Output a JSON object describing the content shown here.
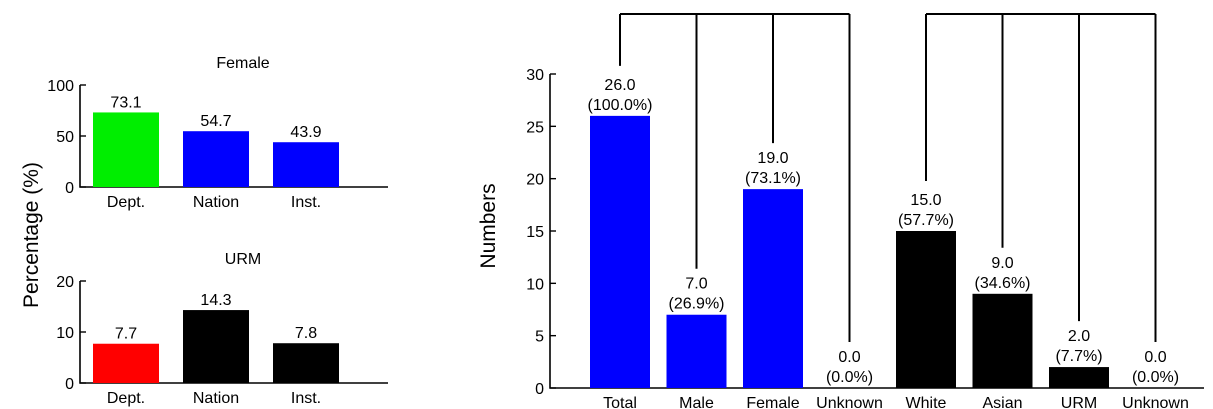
{
  "shared_ylabel": "Percentage (%)",
  "chart_data": [
    {
      "id": "female",
      "type": "bar",
      "title": "Female",
      "categories": [
        "Dept.",
        "Nation",
        "Inst."
      ],
      "values": [
        73.1,
        54.7,
        43.9
      ],
      "value_labels": [
        "73.1",
        "54.7",
        "43.9"
      ],
      "colors": [
        "#00ee00",
        "#0000ff",
        "#0000ff"
      ],
      "ylim": [
        0,
        100
      ],
      "yticks": [
        0,
        50,
        100
      ]
    },
    {
      "id": "urm",
      "type": "bar",
      "title": "URM",
      "categories": [
        "Dept.",
        "Nation",
        "Inst."
      ],
      "values": [
        7.7,
        14.3,
        7.8
      ],
      "value_labels": [
        "7.7",
        "14.3",
        "7.8"
      ],
      "colors": [
        "#ff0000",
        "#000000",
        "#000000"
      ],
      "ylim": [
        0,
        20
      ],
      "yticks": [
        0,
        10,
        20
      ]
    },
    {
      "id": "numbers",
      "type": "bar",
      "ylabel": "Numbers",
      "categories": [
        "Total",
        "Male",
        "Female",
        "Unknown",
        "White",
        "Asian",
        "URM",
        "Unknown"
      ],
      "values": [
        26.0,
        7.0,
        19.0,
        0.0,
        15.0,
        9.0,
        2.0,
        0.0
      ],
      "value_labels": [
        "26.0",
        "7.0",
        "19.0",
        "0.0",
        "15.0",
        "9.0",
        "2.0",
        "0.0"
      ],
      "percent_labels": [
        "(100.0%)",
        "(26.9%)",
        "(73.1%)",
        "(0.0%)",
        "(57.7%)",
        "(34.6%)",
        "(7.7%)",
        "(0.0%)"
      ],
      "colors": [
        "#0000ff",
        "#0000ff",
        "#0000ff",
        "#0000ff",
        "#000000",
        "#000000",
        "#000000",
        "#000000"
      ],
      "ylim": [
        0,
        30
      ],
      "yticks": [
        0,
        5,
        10,
        15,
        20,
        25,
        30
      ],
      "groups": [
        [
          0,
          1,
          2,
          3
        ],
        [
          4,
          5,
          6,
          7
        ]
      ]
    }
  ]
}
